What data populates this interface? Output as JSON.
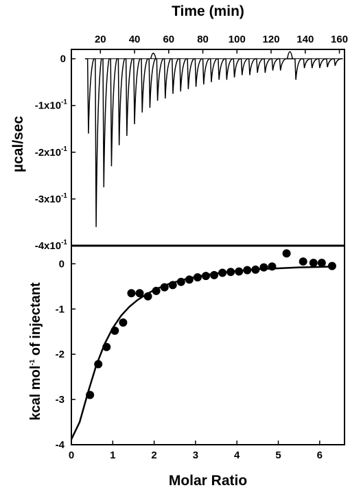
{
  "chart_data": [
    {
      "panel": "top",
      "type": "line",
      "xlabel": "Time (min)",
      "ylabel": "µcal/sec",
      "xlim": [
        3,
        163
      ],
      "ylim": [
        -0.4,
        0.02
      ],
      "xticks": [
        20,
        40,
        60,
        80,
        100,
        120,
        140,
        160
      ],
      "yticks": [
        {
          "value": 0,
          "label": "0"
        },
        {
          "value": -0.1,
          "label": "-1x10",
          "exp": "-1"
        },
        {
          "value": -0.2,
          "label": "-2x10",
          "exp": "-1"
        },
        {
          "value": -0.3,
          "label": "-3x10",
          "exp": "-1"
        },
        {
          "value": -0.4,
          "label": "-4x10",
          "exp": "-1"
        }
      ],
      "grid": false,
      "baseline": 0,
      "injection_peaks": [
        {
          "t": 12.5,
          "min": -0.16
        },
        {
          "t": 17,
          "min": -0.36
        },
        {
          "t": 21.5,
          "min": -0.275
        },
        {
          "t": 26,
          "min": -0.23
        },
        {
          "t": 30.5,
          "min": -0.185
        },
        {
          "t": 35,
          "min": -0.165
        },
        {
          "t": 39.5,
          "min": -0.14
        },
        {
          "t": 44,
          "min": -0.115
        },
        {
          "t": 48.5,
          "min": -0.105
        },
        {
          "t": 53,
          "min": -0.09
        },
        {
          "t": 57.5,
          "min": -0.085
        },
        {
          "t": 62,
          "min": -0.075
        },
        {
          "t": 66.5,
          "min": -0.07
        },
        {
          "t": 71,
          "min": -0.065
        },
        {
          "t": 75.5,
          "min": -0.06
        },
        {
          "t": 80,
          "min": -0.055
        },
        {
          "t": 84.5,
          "min": -0.05
        },
        {
          "t": 89,
          "min": -0.045
        },
        {
          "t": 93.5,
          "min": -0.045
        },
        {
          "t": 98,
          "min": -0.04
        },
        {
          "t": 102.5,
          "min": -0.035
        },
        {
          "t": 107,
          "min": -0.035
        },
        {
          "t": 111.5,
          "min": -0.03
        },
        {
          "t": 116,
          "min": -0.03
        },
        {
          "t": 120.5,
          "min": -0.025
        },
        {
          "t": 125,
          "min": -0.025
        },
        {
          "t": 134,
          "min": -0.045
        },
        {
          "t": 139,
          "min": -0.02
        },
        {
          "t": 143.5,
          "min": -0.02
        },
        {
          "t": 148,
          "min": -0.02
        },
        {
          "t": 152.5,
          "min": -0.018
        },
        {
          "t": 157,
          "min": -0.015
        }
      ],
      "artifacts": [
        {
          "t": 51,
          "value": 0.012
        },
        {
          "t": 131,
          "value": 0.015
        }
      ]
    },
    {
      "panel": "bottom",
      "type": "scatter",
      "xlabel": "Molar Ratio",
      "ylabel": "kcal mol",
      "ylabel_exp": "-1",
      "ylabel_suffix": " of injectant",
      "xlim": [
        0,
        6.6
      ],
      "ylim": [
        -4,
        0.4
      ],
      "xticks": [
        0,
        1,
        2,
        3,
        4,
        5,
        6
      ],
      "yticks": [
        0,
        -1,
        -2,
        -3,
        -4
      ],
      "grid": false,
      "series": [
        {
          "kind": "points",
          "x": [
            0.45,
            0.65,
            0.85,
            1.05,
            1.25,
            1.45,
            1.65,
            1.85,
            2.05,
            2.25,
            2.45,
            2.65,
            2.85,
            3.05,
            3.25,
            3.45,
            3.65,
            3.85,
            4.05,
            4.25,
            4.45,
            4.65,
            4.85,
            5.2,
            5.6,
            5.85,
            6.05,
            6.3
          ],
          "y": [
            -2.9,
            -2.22,
            -1.84,
            -1.48,
            -1.3,
            -0.65,
            -0.65,
            -0.72,
            -0.6,
            -0.52,
            -0.47,
            -0.4,
            -0.35,
            -0.3,
            -0.27,
            -0.25,
            -0.2,
            -0.18,
            -0.17,
            -0.14,
            -0.13,
            -0.08,
            -0.06,
            0.23,
            0.05,
            0.02,
            0.02,
            -0.05
          ]
        },
        {
          "kind": "fit",
          "x": [
            0.0,
            0.2,
            0.4,
            0.6,
            0.8,
            1.0,
            1.2,
            1.4,
            1.6,
            1.8,
            2.0,
            2.2,
            2.4,
            2.6,
            2.8,
            3.0,
            3.3,
            3.6,
            4.0,
            4.5,
            5.0,
            5.5,
            6.0,
            6.3
          ],
          "y": [
            -3.88,
            -3.5,
            -2.85,
            -2.25,
            -1.78,
            -1.42,
            -1.15,
            -0.95,
            -0.8,
            -0.68,
            -0.58,
            -0.5,
            -0.43,
            -0.38,
            -0.33,
            -0.29,
            -0.24,
            -0.2,
            -0.16,
            -0.12,
            -0.1,
            -0.08,
            -0.07,
            -0.06
          ]
        }
      ]
    }
  ]
}
